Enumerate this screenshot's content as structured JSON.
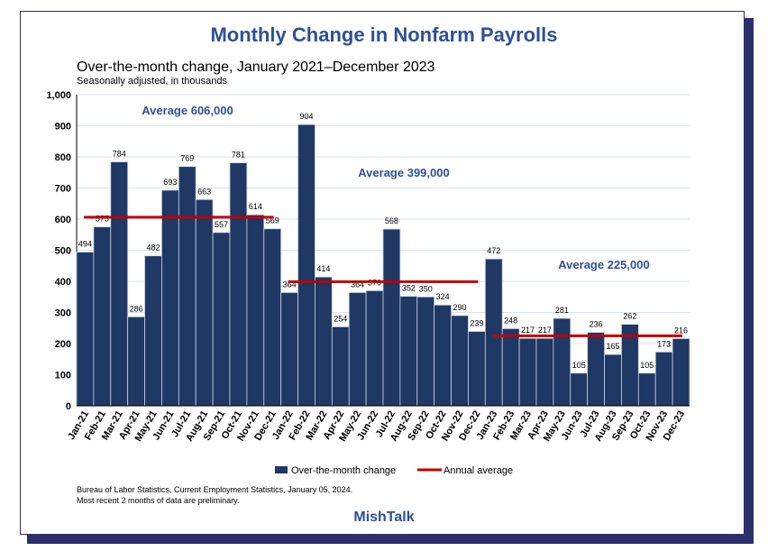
{
  "chart_data": {
    "type": "bar",
    "title": "Monthly Change in Nonfarm Payrolls",
    "subtitle": "Over-the-month change, January 2021–December 2023",
    "ylabel": "Seasonally adjusted, in thousands",
    "ylim": [
      0,
      1000
    ],
    "yticks": [
      "0",
      "100",
      "200",
      "300",
      "400",
      "500",
      "600",
      "700",
      "800",
      "900",
      "1,000"
    ],
    "categories": [
      "Jan-21",
      "Feb-21",
      "Mar-21",
      "Apr-21",
      "May-21",
      "Jun-21",
      "Jul-21",
      "Aug-21",
      "Sep-21",
      "Oct-21",
      "Nov-21",
      "Dec-21",
      "Jan-22",
      "Feb-22",
      "Mar-22",
      "Apr-22",
      "May-22",
      "Jun-22",
      "Jul-22",
      "Aug-22",
      "Sep-22",
      "Oct-22",
      "Nov-22",
      "Dec-22",
      "Jan-23",
      "Feb-23",
      "Mar-23",
      "Apr-23",
      "May-23",
      "Jun-23",
      "Jul-23",
      "Aug-23",
      "Sep-23",
      "Oct-23",
      "Nov-23",
      "Dec-23"
    ],
    "series": [
      {
        "name": "Over-the-month change",
        "color": "#1f3864",
        "values": [
          494,
          575,
          784,
          286,
          482,
          693,
          769,
          663,
          557,
          781,
          614,
          569,
          364,
          904,
          414,
          254,
          364,
          370,
          568,
          352,
          350,
          324,
          290,
          239,
          472,
          248,
          217,
          217,
          281,
          105,
          236,
          165,
          262,
          105,
          173,
          216
        ]
      },
      {
        "name": "Annual average",
        "color": "#c00000",
        "segments": [
          {
            "from": "Jan-21",
            "to": "Dec-21",
            "value": 606
          },
          {
            "from": "Jan-22",
            "to": "Dec-22",
            "value": 399
          },
          {
            "from": "Jan-23",
            "to": "Dec-23",
            "value": 225
          }
        ]
      }
    ],
    "annotations": [
      "Average 606,000",
      "Average 399,000",
      "Average 225,000"
    ],
    "legend": "bottom",
    "grid": true
  },
  "source": [
    "Bureau of Labor Statistics, Current Employment Statistics, January 05, 2024.",
    "Most recent 2 months of data are preliminary."
  ],
  "brand": "MishTalk"
}
